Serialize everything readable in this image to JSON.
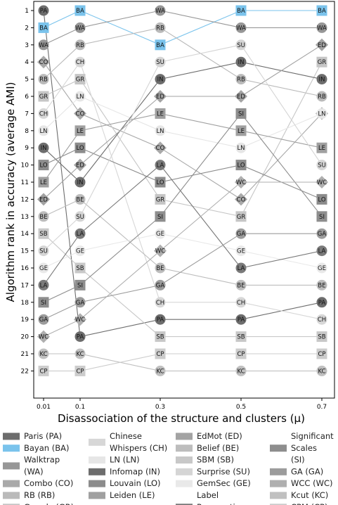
{
  "chart_data": {
    "type": "line",
    "title": "",
    "xlabel": "Disassociation of the structure and clusters (μ)",
    "ylabel": "Algorithm rank in accuracy (average AMI)",
    "x": [
      0.01,
      0.1,
      0.3,
      0.5,
      0.7
    ],
    "x_tick_labels": [
      "0.01",
      "0.1",
      "0.3",
      "0.5",
      "0.7"
    ],
    "y_ticks": [
      1,
      2,
      3,
      4,
      5,
      6,
      7,
      8,
      9,
      10,
      11,
      12,
      13,
      14,
      15,
      16,
      17,
      18,
      19,
      20,
      21,
      22
    ],
    "ylim": [
      22,
      1
    ],
    "y_inverted": true,
    "legend_position": "bottom",
    "series": [
      {
        "name": "Paris (PA)",
        "code": "PA",
        "ranks": [
          1,
          20,
          19,
          19,
          18
        ],
        "color": "#6d6d6d",
        "marker": "circle"
      },
      {
        "name": "Bayan (BA)",
        "code": "BA",
        "ranks": [
          2,
          1,
          3,
          1,
          1
        ],
        "color": "#7ac3ec",
        "marker": "square"
      },
      {
        "name": "Walktrap (WA)",
        "code": "WA",
        "ranks": [
          3,
          2,
          1,
          2,
          2
        ],
        "color": "#979797",
        "marker": "circle"
      },
      {
        "name": "Combo (CO)",
        "code": "CO",
        "ranks": [
          4,
          7,
          9,
          12,
          7
        ],
        "color": "#a9a9a9",
        "marker": "diamond"
      },
      {
        "name": "RB (RB)",
        "code": "RB",
        "ranks": [
          5,
          3,
          2,
          5,
          6
        ],
        "color": "#bababa",
        "marker": "circle"
      },
      {
        "name": "Greedy (GR)",
        "code": "GR",
        "ranks": [
          6,
          5,
          12,
          13,
          4
        ],
        "color": "#c6c6c6",
        "marker": "square"
      },
      {
        "name": "Chinese Whispers (CH)",
        "code": "CH",
        "ranks": [
          7,
          4,
          18,
          18,
          19
        ],
        "color": "#d7d7d7",
        "marker": "circle"
      },
      {
        "name": "LN (LN)",
        "code": "LN",
        "ranks": [
          8,
          6,
          8,
          9,
          7
        ],
        "color": "#e6e6e6",
        "marker": "circle"
      },
      {
        "name": "Infomap (IN)",
        "code": "IN",
        "ranks": [
          9,
          11,
          5,
          4,
          5
        ],
        "color": "#6d6d6d",
        "marker": "circle"
      },
      {
        "name": "Louvain (LO)",
        "code": "LO",
        "ranks": [
          10,
          9,
          11,
          10,
          12
        ],
        "color": "#8c8c8c",
        "marker": "square"
      },
      {
        "name": "Leiden (LE)",
        "code": "LE",
        "ranks": [
          11,
          8,
          7,
          8,
          9
        ],
        "color": "#a0a0a0",
        "marker": "square"
      },
      {
        "name": "EdMot (ED)",
        "code": "ED",
        "ranks": [
          12,
          10,
          6,
          6,
          3
        ],
        "color": "#a3a3a3",
        "marker": "diamond"
      },
      {
        "name": "Belief (BE)",
        "code": "BE",
        "ranks": [
          13,
          12,
          16,
          17,
          17
        ],
        "color": "#bdbdbd",
        "marker": "circle"
      },
      {
        "name": "SBM (SB)",
        "code": "SB",
        "ranks": [
          14,
          16,
          20,
          20,
          20
        ],
        "color": "#c8c8c8",
        "marker": "square"
      },
      {
        "name": "Surprise (SU)",
        "code": "SU",
        "ranks": [
          15,
          13,
          4,
          3,
          10
        ],
        "color": "#d5d5d5",
        "marker": "circle"
      },
      {
        "name": "GemSec (GE)",
        "code": "GE",
        "ranks": [
          16,
          15,
          14,
          15,
          16
        ],
        "color": "#e9e9e9",
        "marker": "circle"
      },
      {
        "name": "Label Propagation (LA)",
        "code": "LA",
        "ranks": [
          17,
          14,
          10,
          16,
          15
        ],
        "color": "#7a7a7a",
        "marker": "circle"
      },
      {
        "name": "Significant Scales (SI)",
        "code": "SI",
        "ranks": [
          18,
          17,
          13,
          7,
          13
        ],
        "color": "#8e8e8e",
        "marker": "square"
      },
      {
        "name": "GA (GA)",
        "code": "GA",
        "ranks": [
          19,
          18,
          17,
          14,
          14
        ],
        "color": "#9c9c9c",
        "marker": "circle"
      },
      {
        "name": "WCC (WC)",
        "code": "WC",
        "ranks": [
          20,
          19,
          15,
          11,
          11
        ],
        "color": "#afafaf",
        "marker": "diamond"
      },
      {
        "name": "Kcut (KC)",
        "code": "KC",
        "ranks": [
          21,
          21,
          22,
          22,
          22
        ],
        "color": "#c0c0c0",
        "marker": "circle"
      },
      {
        "name": "CPM (CP)",
        "code": "CP",
        "ranks": [
          22,
          22,
          21,
          21,
          21
        ],
        "color": "#cccccc",
        "marker": "square"
      }
    ],
    "legend": [
      [
        "Paris (PA)",
        "Bayan (BA)",
        "Walktrap (WA)",
        "Combo (CO)",
        "RB (RB)",
        "Greedy (GR)"
      ],
      [
        "Chinese Whispers (CH)",
        "LN (LN)",
        "Infomap (IN)",
        "Louvain (LO)",
        "Leiden (LE)"
      ],
      [
        "EdMot (ED)",
        "Belief (BE)",
        "SBM (SB)",
        "Surprise (SU)",
        "GemSec (GE)",
        "Label Propagation (LA)"
      ],
      [
        "Significant Scales (SI)",
        "GA (GA)",
        "WCC (WC)",
        "Kcut (KC)",
        "CPM (CP)"
      ]
    ]
  }
}
